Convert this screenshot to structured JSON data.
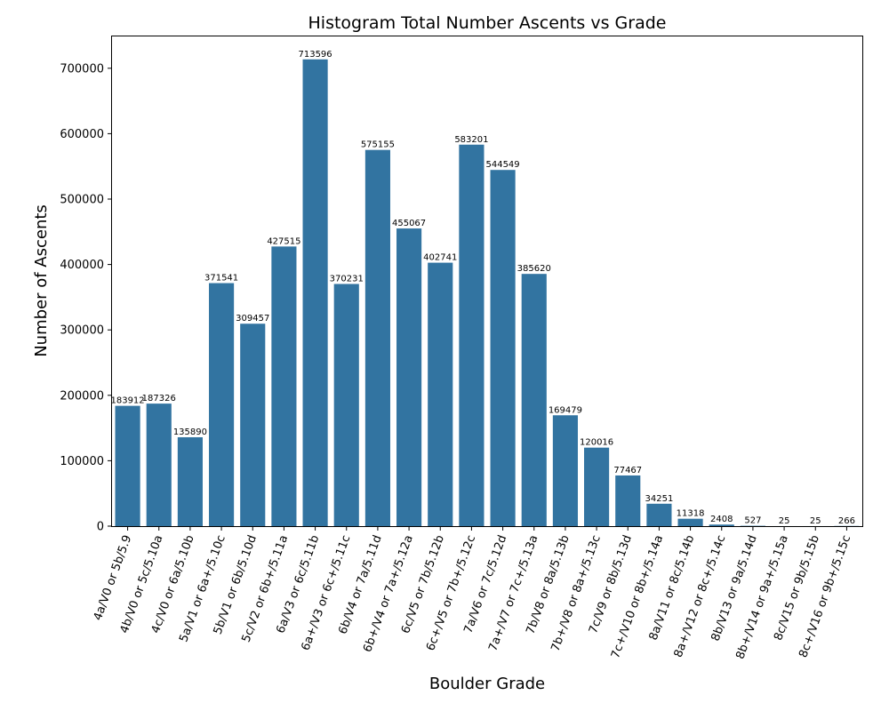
{
  "chart_data": {
    "type": "bar",
    "title": "Histogram Total Number Ascents vs Grade",
    "xlabel": "Boulder Grade",
    "ylabel": "Number of Ascents",
    "ylim": [
      0,
      750000
    ],
    "yticks": [
      0,
      100000,
      200000,
      300000,
      400000,
      500000,
      600000,
      700000
    ],
    "grid": false,
    "bar_color": "#3274a1",
    "categories": [
      "4a/V0 or 5b/5.9",
      "4b/V0 or 5c/5.10a",
      "4c/V0 or 6a/5.10b",
      "5a/V1 or 6a+/5.10c",
      "5b/V1 or 6b/5.10d",
      "5c/V2 or 6b+/5.11a",
      "6a/V3 or 6c/5.11b",
      "6a+/V3 or 6c+/5.11c",
      "6b/V4 or 7a/5.11d",
      "6b+/V4 or 7a+/5.12a",
      "6c/V5 or 7b/5.12b",
      "6c+/V5 or 7b+/5.12c",
      "7a/V6 or 7c/5.12d",
      "7a+/V7 or 7c+/5.13a",
      "7b/V8 or 8a/5.13b",
      "7b+/V8 or 8a+/5.13c",
      "7c/V9 or 8b/5.13d",
      "7c+/V10 or 8b+/5.14a",
      "8a/V11 or 8c/5.14b",
      "8a+/V12 or 8c+/5.14c",
      "8b/V13 or 9a/5.14d",
      "8b+/V14 or 9a+/5.15a",
      "8c/V15 or 9b/5.15b",
      "8c+/V16 or 9b+/5.15c"
    ],
    "values": [
      183912,
      187326,
      135890,
      371541,
      309457,
      427515,
      713596,
      370231,
      575155,
      455067,
      402741,
      583201,
      544549,
      385620,
      169479,
      120016,
      77467,
      34251,
      11318,
      2408,
      527,
      25,
      25,
      266
    ]
  }
}
